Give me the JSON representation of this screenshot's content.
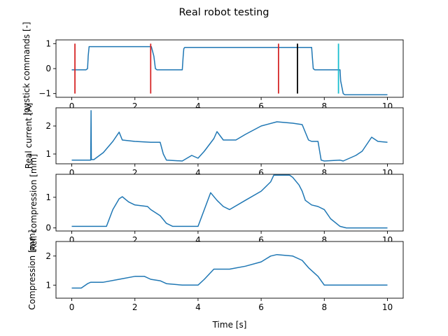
{
  "chart_data": {
    "title": "Real robot testing",
    "xlabel": "Time [s]",
    "colors": {
      "series": "#1f77b4",
      "red": "#d62728",
      "black": "#000000",
      "cyan": "#17becf"
    },
    "subplots": [
      {
        "type": "line",
        "ylabel": "Joystick commands [-]",
        "xlim": [
          -0.5,
          10.5
        ],
        "ylim": [
          -1.15,
          1.15
        ],
        "xticks": [
          0,
          2,
          4,
          6,
          8,
          10
        ],
        "yticks": [
          -1,
          0,
          1
        ],
        "series": [
          {
            "color": "#1f77b4",
            "x": [
              0,
              0.45,
              0.5,
              0.52,
              0.55,
              2.52,
              2.6,
              2.65,
              2.7,
              3.5,
              3.53,
              3.55,
              3.58,
              7.6,
              7.62,
              7.65,
              7.7,
              8.5,
              8.52,
              8.6,
              8.65,
              10
            ],
            "y": [
              -0.05,
              -0.05,
              0.0,
              0.5,
              0.88,
              0.88,
              0.5,
              0.0,
              -0.05,
              -0.05,
              0.5,
              0.8,
              0.85,
              0.85,
              0.5,
              0.0,
              -0.05,
              -0.05,
              -0.5,
              -1.0,
              -1.05,
              -1.05
            ]
          }
        ],
        "vlines": [
          {
            "x": 0.1,
            "ymin": -1.0,
            "ymax": 1.0,
            "color": "#d62728"
          },
          {
            "x": 2.5,
            "ymin": -1.0,
            "ymax": 1.0,
            "color": "#d62728"
          },
          {
            "x": 6.55,
            "ymin": -1.0,
            "ymax": 1.0,
            "color": "#d62728"
          },
          {
            "x": 7.15,
            "ymin": -1.0,
            "ymax": 1.0,
            "color": "#000000"
          },
          {
            "x": 8.45,
            "ymin": -1.0,
            "ymax": 1.0,
            "color": "#17becf"
          }
        ]
      },
      {
        "type": "line",
        "ylabel": "Real current [A]",
        "xlim": [
          -0.5,
          10.5
        ],
        "ylim": [
          0.65,
          2.65
        ],
        "xticks": [
          0,
          2,
          4,
          6,
          8,
          10
        ],
        "yticks": [
          1,
          2
        ],
        "series": [
          {
            "color": "#1f77b4",
            "x": [
              0,
              0.5,
              0.6,
              0.61,
              0.62,
              0.63,
              0.7,
              1.0,
              1.3,
              1.5,
              1.6,
              2.0,
              2.5,
              2.8,
              2.9,
              3.0,
              3.5,
              3.8,
              4.0,
              4.2,
              4.5,
              4.6,
              4.8,
              5.2,
              5.5,
              6.0,
              6.5,
              7.0,
              7.3,
              7.5,
              7.6,
              7.8,
              7.9,
              8.0,
              8.5,
              8.6,
              9.0,
              9.2,
              9.5,
              9.7,
              10
            ],
            "y": [
              0.78,
              0.78,
              0.78,
              2.55,
              0.8,
              0.8,
              0.8,
              1.05,
              1.45,
              1.78,
              1.5,
              1.45,
              1.42,
              1.42,
              1.0,
              0.78,
              0.75,
              0.95,
              0.85,
              1.1,
              1.55,
              1.8,
              1.5,
              1.5,
              1.7,
              2.0,
              2.15,
              2.1,
              2.05,
              1.5,
              1.45,
              1.45,
              0.78,
              0.75,
              0.78,
              0.75,
              0.95,
              1.1,
              1.6,
              1.45,
              1.42
            ]
          }
        ],
        "vlines": []
      },
      {
        "type": "line",
        "ylabel": "Ref. compression [mm]",
        "xlim": [
          -0.5,
          10.5
        ],
        "ylim": [
          -0.1,
          1.75
        ],
        "xticks": [
          0,
          2,
          4,
          6,
          8,
          10
        ],
        "yticks": [
          0,
          1
        ],
        "series": [
          {
            "color": "#1f77b4",
            "x": [
              0,
              1.1,
              1.3,
              1.5,
              1.6,
              1.8,
              2.0,
              2.4,
              2.5,
              2.8,
              3.0,
              3.2,
              4.0,
              4.2,
              4.4,
              4.6,
              4.8,
              5.0,
              5.5,
              6.0,
              6.3,
              6.4,
              6.9,
              7.0,
              7.2,
              7.3,
              7.4,
              7.6,
              7.8,
              8.0,
              8.2,
              8.5,
              8.7,
              9.0,
              10
            ],
            "y": [
              0.05,
              0.05,
              0.6,
              0.95,
              1.02,
              0.85,
              0.75,
              0.7,
              0.6,
              0.4,
              0.15,
              0.05,
              0.05,
              0.6,
              1.15,
              0.9,
              0.7,
              0.6,
              0.9,
              1.2,
              1.5,
              1.72,
              1.72,
              1.65,
              1.4,
              1.2,
              0.9,
              0.75,
              0.7,
              0.6,
              0.3,
              0.05,
              0.0,
              0.0,
              0.0
            ]
          }
        ],
        "vlines": []
      },
      {
        "type": "line",
        "ylabel": "Compression [mm]",
        "xlim": [
          -0.5,
          10.5
        ],
        "ylim": [
          0.55,
          2.5
        ],
        "xticks": [
          0,
          2,
          4,
          6,
          8,
          10
        ],
        "yticks": [
          1,
          2
        ],
        "series": [
          {
            "color": "#1f77b4",
            "x": [
              0,
              0.3,
              0.5,
              0.6,
              1.0,
              1.5,
              2.0,
              2.3,
              2.5,
              2.8,
              3.0,
              3.5,
              4.0,
              4.2,
              4.5,
              5.0,
              5.5,
              6.0,
              6.3,
              6.5,
              7.0,
              7.3,
              7.5,
              7.8,
              8.0,
              8.5,
              9.0,
              9.5,
              10
            ],
            "y": [
              0.9,
              0.9,
              1.05,
              1.1,
              1.1,
              1.2,
              1.3,
              1.3,
              1.2,
              1.15,
              1.05,
              1.0,
              1.0,
              1.2,
              1.55,
              1.55,
              1.65,
              1.8,
              2.0,
              2.05,
              2.0,
              1.85,
              1.6,
              1.3,
              1.0,
              1.0,
              1.0,
              1.0,
              1.0
            ]
          }
        ],
        "vlines": []
      }
    ]
  }
}
